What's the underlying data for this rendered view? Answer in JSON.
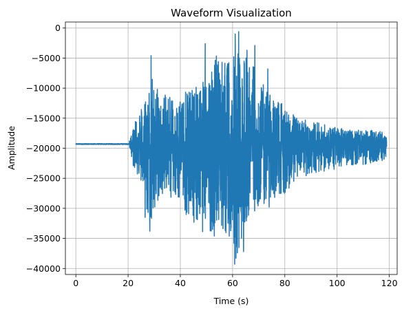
{
  "chart_data": {
    "type": "line",
    "title": "Waveform Visualization",
    "xlabel": "Time (s)",
    "ylabel": "Amplitude",
    "xlim": [
      -4,
      123
    ],
    "ylim": [
      -41000,
      1000
    ],
    "xticks": [
      0,
      20,
      40,
      60,
      80,
      100,
      120
    ],
    "yticks": [
      0,
      -5000,
      -10000,
      -15000,
      -20000,
      -25000,
      -30000,
      -35000,
      -40000
    ],
    "ytick_labels": [
      "0",
      "−5000",
      "−10000",
      "−15000",
      "−20000",
      "−25000",
      "−30000",
      "−35000",
      "−40000"
    ],
    "grid": true,
    "color": "#1f77b4",
    "baseline": -19300,
    "envelope": {
      "t": [
        0,
        20,
        21,
        22,
        24,
        26,
        28,
        30,
        32,
        35,
        38,
        42,
        46,
        50,
        54,
        58,
        61,
        63,
        65,
        67,
        70,
        75,
        80,
        85,
        90,
        95,
        100,
        105,
        110,
        115,
        119
      ],
      "upper": [
        -19200,
        -19150,
        -18000,
        -16000,
        -13500,
        -12000,
        -9000,
        -7500,
        -10000,
        -11000,
        -12000,
        -10500,
        -9000,
        -7500,
        -4500,
        -6000,
        -1000,
        -3000,
        -2000,
        -5000,
        -8500,
        -11000,
        -13000,
        -15000,
        -15500,
        -16000,
        -16500,
        -17000,
        -17000,
        -17000,
        -17500
      ],
      "lower": [
        -19450,
        -19500,
        -20500,
        -23000,
        -25000,
        -27000,
        -33500,
        -31000,
        -28500,
        -27500,
        -29000,
        -31000,
        -33000,
        -34500,
        -33000,
        -35000,
        -39300,
        -37000,
        -32500,
        -31000,
        -30000,
        -28500,
        -27500,
        -25000,
        -24500,
        -24000,
        -23500,
        -23000,
        -22700,
        -22500,
        -21700
      ]
    },
    "spikes": [
      {
        "t": 28.8,
        "y": -4600
      },
      {
        "t": 28.3,
        "y": -33800
      },
      {
        "t": 26.5,
        "y": -31500
      },
      {
        "t": 53.0,
        "y": -34600
      },
      {
        "t": 49.5,
        "y": -2600
      },
      {
        "t": 60.8,
        "y": -39300
      },
      {
        "t": 62.3,
        "y": -600
      },
      {
        "t": 61.0,
        "y": -1000
      },
      {
        "t": 64.2,
        "y": -37200
      },
      {
        "t": 68.5,
        "y": -2900
      },
      {
        "t": 74.0,
        "y": -29800
      },
      {
        "t": 73.5,
        "y": -6800
      }
    ]
  }
}
